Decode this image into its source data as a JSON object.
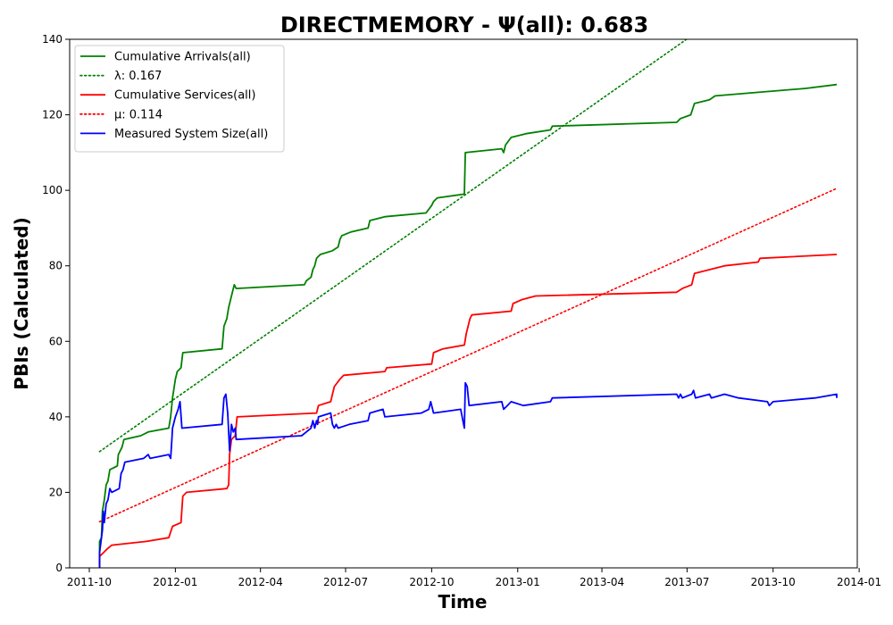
{
  "chart_data": {
    "type": "line",
    "title": "DIRECTMEMORY -  Ψ(all): 0.683",
    "xlabel": "Time",
    "ylabel": "PBIs (Calculated)",
    "xlim": [
      "2011-09-10",
      "2013-12-30"
    ],
    "ylim": [
      0,
      140
    ],
    "xticks": [
      "2011-10",
      "2012-01",
      "2012-04",
      "2012-07",
      "2012-10",
      "2013-01",
      "2013-04",
      "2013-07",
      "2013-10",
      "2014-01"
    ],
    "yticks": [
      0,
      20,
      40,
      60,
      80,
      100,
      120,
      140
    ],
    "grid": false,
    "legend_position": "top-left",
    "series": [
      {
        "name": "Cumulative Arrivals(all)",
        "color": "#008000",
        "style": "solid",
        "points": [
          [
            "2011-10-12",
            0
          ],
          [
            "2011-10-12",
            7
          ],
          [
            "2011-10-14",
            8
          ],
          [
            "2011-10-15",
            15
          ],
          [
            "2011-10-17",
            18
          ],
          [
            "2011-10-19",
            22
          ],
          [
            "2011-10-21",
            23
          ],
          [
            "2011-10-23",
            26
          ],
          [
            "2011-10-31",
            27
          ],
          [
            "2011-11-01",
            30
          ],
          [
            "2011-11-05",
            32
          ],
          [
            "2011-11-07",
            34
          ],
          [
            "2011-11-25",
            35
          ],
          [
            "2011-12-03",
            36
          ],
          [
            "2011-12-25",
            37
          ],
          [
            "2011-12-27",
            40
          ],
          [
            "2011-12-29",
            45
          ],
          [
            "2012-01-01",
            50
          ],
          [
            "2012-01-03",
            52
          ],
          [
            "2012-01-07",
            53
          ],
          [
            "2012-01-09",
            57
          ],
          [
            "2012-02-20",
            58
          ],
          [
            "2012-02-22",
            64
          ],
          [
            "2012-02-25",
            66
          ],
          [
            "2012-02-27",
            69
          ],
          [
            "2012-03-01",
            72
          ],
          [
            "2012-03-03",
            74
          ],
          [
            "2012-03-04",
            75
          ],
          [
            "2012-03-06",
            74
          ],
          [
            "2012-05-18",
            75
          ],
          [
            "2012-05-20",
            76
          ],
          [
            "2012-05-25",
            77
          ],
          [
            "2012-05-27",
            79
          ],
          [
            "2012-05-29",
            80
          ],
          [
            "2012-05-31",
            82
          ],
          [
            "2012-06-04",
            83
          ],
          [
            "2012-06-17",
            84
          ],
          [
            "2012-06-23",
            85
          ],
          [
            "2012-06-25",
            87
          ],
          [
            "2012-06-27",
            88
          ],
          [
            "2012-07-07",
            89
          ],
          [
            "2012-07-25",
            90
          ],
          [
            "2012-07-27",
            92
          ],
          [
            "2012-08-12",
            93
          ],
          [
            "2012-09-25",
            94
          ],
          [
            "2012-10-01",
            96
          ],
          [
            "2012-10-03",
            97
          ],
          [
            "2012-10-07",
            98
          ],
          [
            "2012-11-05",
            99
          ],
          [
            "2012-11-06",
            110
          ],
          [
            "2012-12-15",
            111
          ],
          [
            "2012-12-17",
            110
          ],
          [
            "2012-12-19",
            112
          ],
          [
            "2012-12-25",
            114
          ],
          [
            "2013-01-10",
            115
          ],
          [
            "2013-02-05",
            116
          ],
          [
            "2013-02-07",
            117
          ],
          [
            "2013-06-20",
            118
          ],
          [
            "2013-06-24",
            119
          ],
          [
            "2013-07-05",
            120
          ],
          [
            "2013-07-09",
            123
          ],
          [
            "2013-07-25",
            124
          ],
          [
            "2013-07-31",
            125
          ],
          [
            "2013-11-05",
            127
          ],
          [
            "2013-12-08",
            128
          ]
        ]
      },
      {
        "name": "λ: 0.167",
        "color": "#008000",
        "style": "dotted",
        "points": [
          [
            "2011-10-12",
            30.8
          ],
          [
            "2013-07-12",
            142
          ]
        ]
      },
      {
        "name": "Cumulative Services(all)",
        "color": "#ff0000",
        "style": "solid",
        "points": [
          [
            "2011-10-12",
            0
          ],
          [
            "2011-10-12",
            3
          ],
          [
            "2011-10-16",
            4
          ],
          [
            "2011-10-20",
            5
          ],
          [
            "2011-10-25",
            6
          ],
          [
            "2011-12-01",
            7
          ],
          [
            "2011-12-25",
            8
          ],
          [
            "2011-12-29",
            11
          ],
          [
            "2012-01-07",
            12
          ],
          [
            "2012-01-09",
            19
          ],
          [
            "2012-01-13",
            20
          ],
          [
            "2012-02-25",
            21
          ],
          [
            "2012-02-27",
            22
          ],
          [
            "2012-02-28",
            30
          ],
          [
            "2012-03-01",
            34
          ],
          [
            "2012-03-05",
            35
          ],
          [
            "2012-03-07",
            40
          ],
          [
            "2012-05-31",
            41
          ],
          [
            "2012-06-02",
            43
          ],
          [
            "2012-06-15",
            44
          ],
          [
            "2012-06-17",
            46
          ],
          [
            "2012-06-19",
            48
          ],
          [
            "2012-06-25",
            50
          ],
          [
            "2012-06-29",
            51
          ],
          [
            "2012-08-12",
            52
          ],
          [
            "2012-08-14",
            53
          ],
          [
            "2012-10-01",
            54
          ],
          [
            "2012-10-03",
            57
          ],
          [
            "2012-10-13",
            58
          ],
          [
            "2012-11-05",
            59
          ],
          [
            "2012-11-07",
            62
          ],
          [
            "2012-11-11",
            66
          ],
          [
            "2012-11-13",
            67
          ],
          [
            "2012-12-25",
            68
          ],
          [
            "2012-12-27",
            70
          ],
          [
            "2013-01-05",
            71
          ],
          [
            "2013-01-20",
            72
          ],
          [
            "2013-06-20",
            73
          ],
          [
            "2013-06-26",
            74
          ],
          [
            "2013-07-06",
            75
          ],
          [
            "2013-07-09",
            78
          ],
          [
            "2013-08-10",
            80
          ],
          [
            "2013-09-15",
            81
          ],
          [
            "2013-09-17",
            82
          ],
          [
            "2013-12-08",
            83
          ]
        ]
      },
      {
        "name": "μ: 0.114",
        "color": "#ff0000",
        "style": "dotted",
        "points": [
          [
            "2011-10-12",
            12.2
          ],
          [
            "2013-12-08",
            100.5
          ]
        ]
      },
      {
        "name": "Measured System Size(all)",
        "color": "#0000ff",
        "style": "solid",
        "points": [
          [
            "2011-10-12",
            0
          ],
          [
            "2011-10-12",
            4
          ],
          [
            "2011-10-15",
            10
          ],
          [
            "2011-10-16",
            15
          ],
          [
            "2011-10-17",
            12
          ],
          [
            "2011-10-19",
            17
          ],
          [
            "2011-10-21",
            18
          ],
          [
            "2011-10-23",
            21
          ],
          [
            "2011-10-25",
            20
          ],
          [
            "2011-11-02",
            21
          ],
          [
            "2011-11-04",
            25
          ],
          [
            "2011-11-06",
            26
          ],
          [
            "2011-11-08",
            28
          ],
          [
            "2011-11-28",
            29
          ],
          [
            "2011-12-03",
            30
          ],
          [
            "2011-12-05",
            29
          ],
          [
            "2011-12-25",
            30
          ],
          [
            "2011-12-27",
            29
          ],
          [
            "2011-12-28",
            33
          ],
          [
            "2011-12-29",
            37
          ],
          [
            "2012-01-01",
            40
          ],
          [
            "2012-01-04",
            42
          ],
          [
            "2012-01-06",
            44
          ],
          [
            "2012-01-08",
            37
          ],
          [
            "2012-02-20",
            38
          ],
          [
            "2012-02-22",
            45
          ],
          [
            "2012-02-24",
            46
          ],
          [
            "2012-02-26",
            41
          ],
          [
            "2012-02-28",
            31
          ],
          [
            "2012-03-01",
            38
          ],
          [
            "2012-03-03",
            36
          ],
          [
            "2012-03-05",
            37
          ],
          [
            "2012-03-06",
            34
          ],
          [
            "2012-05-15",
            35
          ],
          [
            "2012-05-20",
            36
          ],
          [
            "2012-05-25",
            37
          ],
          [
            "2012-05-27",
            39
          ],
          [
            "2012-05-29",
            37
          ],
          [
            "2012-05-31",
            39
          ],
          [
            "2012-06-01",
            38
          ],
          [
            "2012-06-02",
            40
          ],
          [
            "2012-06-15",
            41
          ],
          [
            "2012-06-17",
            38
          ],
          [
            "2012-06-19",
            37
          ],
          [
            "2012-06-21",
            38
          ],
          [
            "2012-06-23",
            37
          ],
          [
            "2012-07-05",
            38
          ],
          [
            "2012-07-25",
            39
          ],
          [
            "2012-07-27",
            41
          ],
          [
            "2012-08-10",
            42
          ],
          [
            "2012-08-12",
            40
          ],
          [
            "2012-09-20",
            41
          ],
          [
            "2012-09-28",
            42
          ],
          [
            "2012-09-30",
            44
          ],
          [
            "2012-10-03",
            41
          ],
          [
            "2012-11-01",
            42
          ],
          [
            "2012-11-05",
            37
          ],
          [
            "2012-11-06",
            49
          ],
          [
            "2012-11-08",
            48
          ],
          [
            "2012-11-10",
            43
          ],
          [
            "2012-12-15",
            44
          ],
          [
            "2012-12-17",
            42
          ],
          [
            "2012-12-21",
            43
          ],
          [
            "2012-12-25",
            44
          ],
          [
            "2013-01-07",
            43
          ],
          [
            "2013-02-05",
            44
          ],
          [
            "2013-02-07",
            45
          ],
          [
            "2013-06-20",
            46
          ],
          [
            "2013-06-22",
            45
          ],
          [
            "2013-06-24",
            46
          ],
          [
            "2013-06-26",
            45
          ],
          [
            "2013-07-06",
            46
          ],
          [
            "2013-07-08",
            47
          ],
          [
            "2013-07-10",
            45
          ],
          [
            "2013-07-25",
            46
          ],
          [
            "2013-07-27",
            45
          ],
          [
            "2013-08-10",
            46
          ],
          [
            "2013-08-25",
            45
          ],
          [
            "2013-09-25",
            44
          ],
          [
            "2013-09-27",
            43
          ],
          [
            "2013-10-01",
            44
          ],
          [
            "2013-11-15",
            45
          ],
          [
            "2013-12-08",
            46
          ],
          [
            "2013-12-08",
            45
          ]
        ]
      }
    ]
  }
}
